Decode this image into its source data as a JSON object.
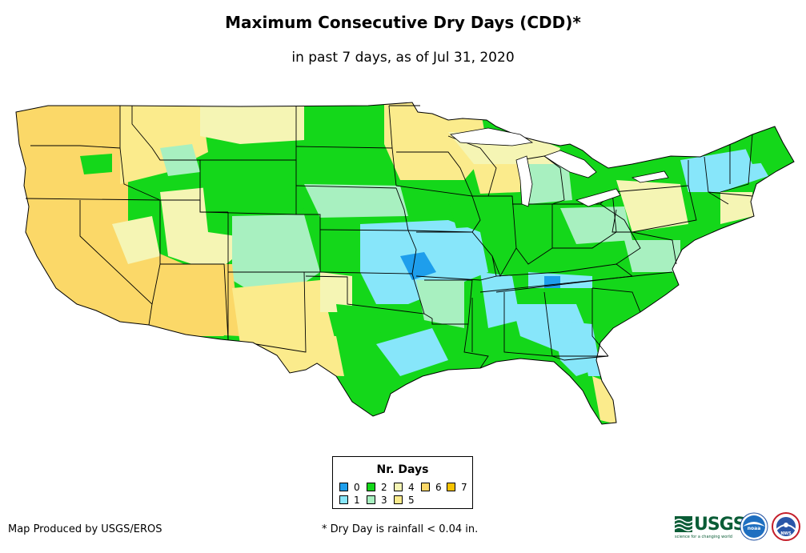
{
  "title": "Maximum Consecutive Dry Days (CDD)*",
  "subtitle": "in past 7 days, as of Jul 31, 2020",
  "legend": {
    "title": "Nr. Days",
    "items": [
      {
        "label": "0",
        "color": "#1e9eec"
      },
      {
        "label": "1",
        "color": "#87e6fa"
      },
      {
        "label": "2",
        "color": "#14d71a"
      },
      {
        "label": "3",
        "color": "#a8f0c0"
      },
      {
        "label": "4",
        "color": "#f5f5b4"
      },
      {
        "label": "5",
        "color": "#fbeb8c"
      },
      {
        "label": "6",
        "color": "#fbd868"
      },
      {
        "label": "7",
        "color": "#f7c300"
      }
    ]
  },
  "credit": "Map Produced by USGS/EROS",
  "footnote": "* Dry Day is rainfall < 0.04 in.",
  "logos": {
    "usgs": "USGS",
    "usgs_tagline": "science for a changing world",
    "noaa": "noaa",
    "nws": "NWS"
  },
  "map": {
    "region": "Contiguous United States",
    "colors": {
      "border": "#000000",
      "dry6": "#fbd868",
      "dry5": "#fbeb8c",
      "dry4": "#f5f5b4",
      "dry3": "#a8f0c0",
      "dry2": "#14d71a",
      "dry1": "#87e6fa",
      "dry0": "#1e9eec"
    }
  }
}
